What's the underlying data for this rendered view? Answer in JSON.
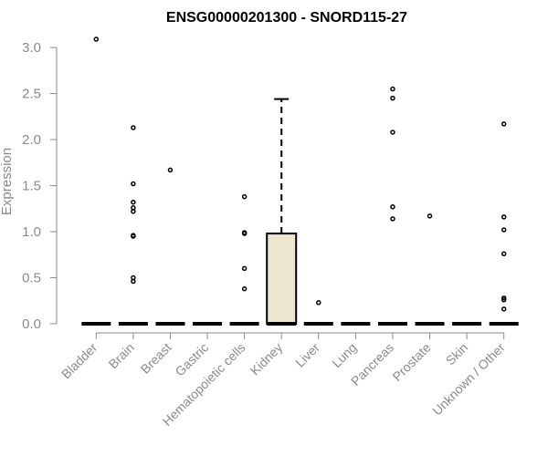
{
  "chart_data": {
    "type": "box",
    "title": "ENSG00000201300 - SNORD115-27",
    "xlabel": "",
    "ylabel": "Expression",
    "ylim": [
      0,
      3.1
    ],
    "yticks": [
      "0.0",
      "0.5",
      "1.0",
      "1.5",
      "2.0",
      "2.5",
      "3.0"
    ],
    "categories": [
      "Bladder",
      "Brain",
      "Breast",
      "Gastric",
      "Hematopoietic cells",
      "Kidney",
      "Liver",
      "Lung",
      "Pancreas",
      "Prostate",
      "Skin",
      "Unknown / Other"
    ],
    "boxes": [
      {
        "category": "Bladder",
        "q1": 0,
        "median": 0,
        "q3": 0,
        "whisker_low": 0,
        "whisker_high": 0
      },
      {
        "category": "Brain",
        "q1": 0,
        "median": 0,
        "q3": 0,
        "whisker_low": 0,
        "whisker_high": 0
      },
      {
        "category": "Breast",
        "q1": 0,
        "median": 0,
        "q3": 0,
        "whisker_low": 0,
        "whisker_high": 0
      },
      {
        "category": "Gastric",
        "q1": 0,
        "median": 0,
        "q3": 0,
        "whisker_low": 0,
        "whisker_high": 0
      },
      {
        "category": "Hematopoietic cells",
        "q1": 0,
        "median": 0,
        "q3": 0,
        "whisker_low": 0,
        "whisker_high": 0
      },
      {
        "category": "Kidney",
        "q1": 0,
        "median": 0,
        "q3": 0.98,
        "whisker_low": 0,
        "whisker_high": 2.44
      },
      {
        "category": "Liver",
        "q1": 0,
        "median": 0,
        "q3": 0,
        "whisker_low": 0,
        "whisker_high": 0
      },
      {
        "category": "Lung",
        "q1": 0,
        "median": 0,
        "q3": 0,
        "whisker_low": 0,
        "whisker_high": 0
      },
      {
        "category": "Pancreas",
        "q1": 0,
        "median": 0,
        "q3": 0,
        "whisker_low": 0,
        "whisker_high": 0
      },
      {
        "category": "Prostate",
        "q1": 0,
        "median": 0,
        "q3": 0,
        "whisker_low": 0,
        "whisker_high": 0
      },
      {
        "category": "Skin",
        "q1": 0,
        "median": 0,
        "q3": 0,
        "whisker_low": 0,
        "whisker_high": 0
      },
      {
        "category": "Unknown / Other",
        "q1": 0,
        "median": 0,
        "q3": 0,
        "whisker_low": 0,
        "whisker_high": 0
      }
    ],
    "outliers": [
      {
        "category": "Bladder",
        "values": [
          3.09
        ]
      },
      {
        "category": "Brain",
        "values": [
          2.13,
          1.52,
          1.32,
          1.26,
          1.22,
          0.96,
          0.95,
          0.5,
          0.46
        ]
      },
      {
        "category": "Breast",
        "values": [
          1.67
        ]
      },
      {
        "category": "Gastric",
        "values": []
      },
      {
        "category": "Hematopoietic cells",
        "values": [
          1.38,
          0.99,
          0.98,
          0.6,
          0.38
        ]
      },
      {
        "category": "Kidney",
        "values": []
      },
      {
        "category": "Liver",
        "values": [
          0.23
        ]
      },
      {
        "category": "Lung",
        "values": []
      },
      {
        "category": "Pancreas",
        "values": [
          2.55,
          2.45,
          2.08,
          1.27,
          1.14
        ]
      },
      {
        "category": "Prostate",
        "values": [
          1.17
        ]
      },
      {
        "category": "Skin",
        "values": []
      },
      {
        "category": "Unknown / Other",
        "values": [
          2.17,
          1.16,
          1.02,
          0.76,
          0.28,
          0.26,
          0.16
        ]
      }
    ],
    "colors": {
      "box_fill": "#ede7cf",
      "axis": "#8a8a8a",
      "marks": "#000000"
    },
    "grid": false,
    "legend": "none"
  }
}
